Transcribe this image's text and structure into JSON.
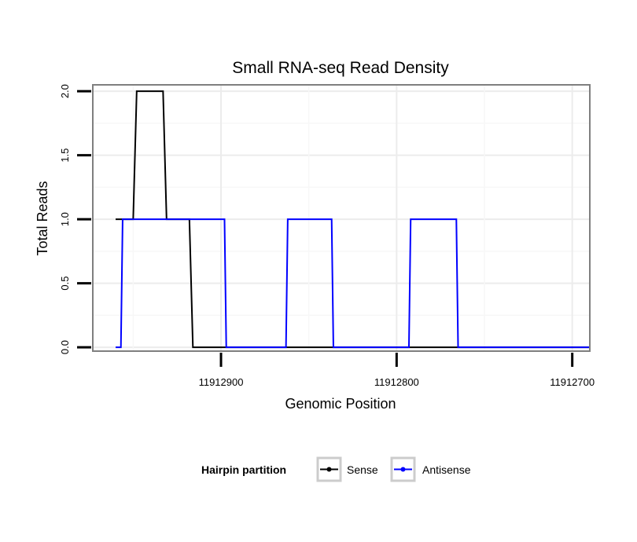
{
  "chart_data": {
    "type": "line",
    "title": "Small RNA-seq Read Density",
    "xlabel": "Genomic Position",
    "ylabel": "Total Reads",
    "xlim": [
      11912973,
      11912690
    ],
    "ylim": [
      -0.03,
      2.05
    ],
    "x_reversed": true,
    "x_ticks": [
      11912900,
      11912800,
      11912700
    ],
    "x_tick_labels": [
      "11912900",
      "11912800",
      "11912700"
    ],
    "y_ticks": [
      0.0,
      0.5,
      1.0,
      1.5,
      2.0
    ],
    "y_tick_labels": [
      "0.0",
      "0.5",
      "1.0",
      "1.5",
      "2.0"
    ],
    "grid": true,
    "legend": {
      "title": "Hairpin partition",
      "position": "bottom"
    },
    "series": [
      {
        "name": "Sense",
        "color": "#000000",
        "points": [
          [
            11912960,
            1
          ],
          [
            11912950,
            1
          ],
          [
            11912948,
            2
          ],
          [
            11912933,
            2
          ],
          [
            11912931,
            1
          ],
          [
            11912918,
            1
          ],
          [
            11912916,
            0
          ],
          [
            11912900,
            0
          ],
          [
            11912850,
            0
          ],
          [
            11912800,
            0
          ],
          [
            11912750,
            0
          ],
          [
            11912700,
            0
          ],
          [
            11912690,
            0
          ]
        ]
      },
      {
        "name": "Antisense",
        "color": "#0000ff",
        "points": [
          [
            11912960,
            0
          ],
          [
            11912957,
            0
          ],
          [
            11912956,
            1
          ],
          [
            11912898,
            1
          ],
          [
            11912897,
            0
          ],
          [
            11912863,
            0
          ],
          [
            11912862,
            1
          ],
          [
            11912837,
            1
          ],
          [
            11912836,
            0
          ],
          [
            11912793,
            0
          ],
          [
            11912792,
            1
          ],
          [
            11912766,
            1
          ],
          [
            11912765,
            0
          ],
          [
            11912720,
            0
          ],
          [
            11912690,
            0
          ]
        ]
      }
    ]
  }
}
